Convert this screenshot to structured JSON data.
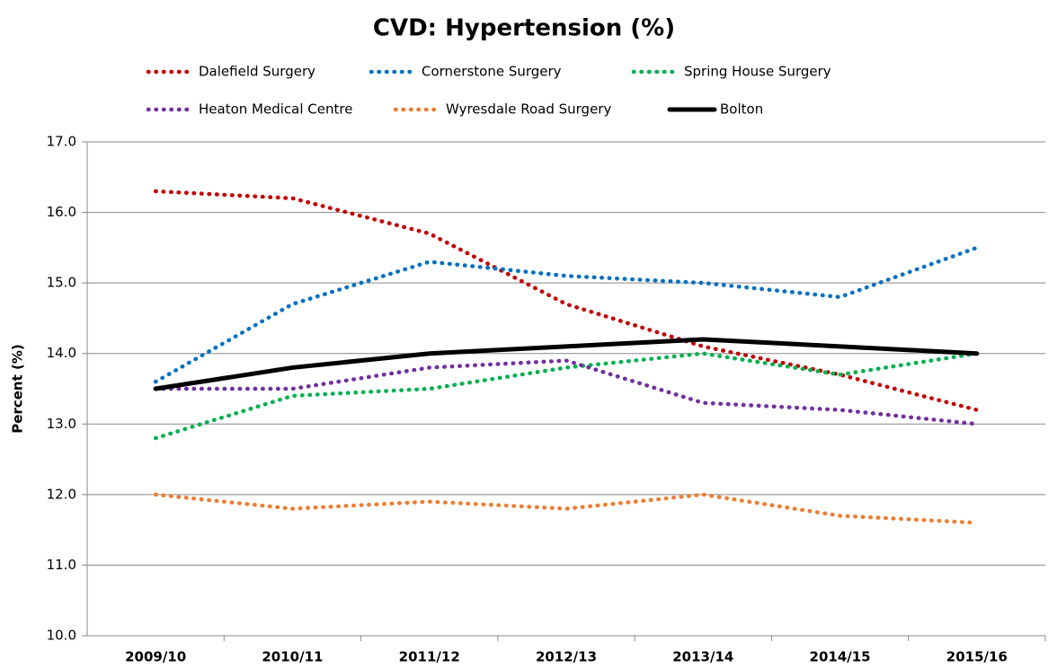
{
  "chart_data": {
    "type": "line",
    "title": "CVD: Hypertension (%)",
    "y_label": "Percent (%)",
    "categories": [
      "2009/10",
      "2010/11",
      "2011/12",
      "2012/13",
      "2013/14",
      "2014/15",
      "2015/16"
    ],
    "series": [
      {
        "name": "Dalefield Surgery",
        "color": "#c00000",
        "style": "dotted",
        "values": [
          16.3,
          16.2,
          15.7,
          14.7,
          14.1,
          13.7,
          13.2
        ]
      },
      {
        "name": "Cornerstone Surgery",
        "color": "#0070c0",
        "style": "dotted",
        "values": [
          13.6,
          14.7,
          15.3,
          15.1,
          15.0,
          14.8,
          15.5
        ]
      },
      {
        "name": "Spring House Surgery",
        "color": "#00b050",
        "style": "dotted",
        "values": [
          12.8,
          13.4,
          13.5,
          13.8,
          14.0,
          13.7,
          14.0
        ]
      },
      {
        "name": "Heaton Medical Centre",
        "color": "#7030a0",
        "style": "dotted",
        "values": [
          13.5,
          13.5,
          13.8,
          13.9,
          13.3,
          13.2,
          13.0
        ]
      },
      {
        "name": "Wyresdale Road Surgery",
        "color": "#ed7d31",
        "style": "dotted",
        "values": [
          12.0,
          11.8,
          11.9,
          11.8,
          12.0,
          11.7,
          11.6
        ]
      },
      {
        "name": "Bolton",
        "color": "#000000",
        "style": "solid",
        "values": [
          13.5,
          13.8,
          14.0,
          14.1,
          14.2,
          14.1,
          14.0
        ]
      }
    ],
    "ylim": [
      10,
      17
    ],
    "yticks": [
      {
        "value": 10,
        "label": "10.0"
      },
      {
        "value": 11,
        "label": "11.0"
      },
      {
        "value": 12,
        "label": "12.0"
      },
      {
        "value": 13,
        "label": "13.0"
      },
      {
        "value": 14,
        "label": "14.0"
      },
      {
        "value": 15,
        "label": "15.0"
      },
      {
        "value": 16,
        "label": "16.0"
      },
      {
        "value": 17,
        "label": "17.0"
      }
    ],
    "grid": true,
    "legend": "top"
  }
}
